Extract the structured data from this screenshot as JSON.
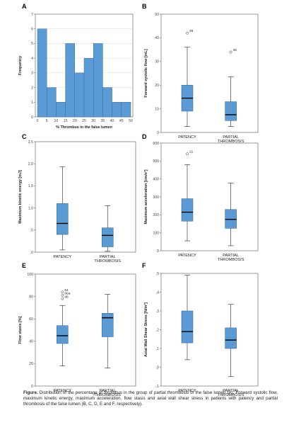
{
  "caption": {
    "lead": "Figure.",
    "text": " Distribution of the percentage of thrombus in the group of partial thrombosis of the false lumen (A). Forward systolic flow, maximum kinetic energy, maximum acceleration, flow stasis and axial wall shear stress in patients with patency and partial thrombosis of the false lumen (B, C, D, E and F, respectively)."
  },
  "colors": {
    "fill": "#5b9bd5",
    "stroke": "#2f5f8f",
    "panel_bg": "#ffffff",
    "grid": "#d9d9d9",
    "axis": "#555555"
  },
  "chart_data": [
    {
      "panel": "A",
      "type": "bar",
      "xlabel": "% Thrombus in the false lumen",
      "ylabel": "Frequency",
      "ylim": [
        0,
        7
      ],
      "yticks": [
        "0",
        "1",
        "2",
        "3",
        "4",
        "5",
        "6",
        "7"
      ],
      "xticks": [
        "0",
        "5",
        "10",
        "15",
        "20",
        "25",
        "30",
        "35",
        "40",
        "45",
        "50"
      ],
      "bin_edges": [
        0,
        5,
        10,
        15,
        20,
        25,
        30,
        35,
        40,
        45,
        50
      ],
      "values": [
        6,
        2,
        1,
        5,
        3,
        4,
        5,
        2,
        1,
        1
      ],
      "grid": true
    },
    {
      "panel": "B",
      "type": "box",
      "ylabel": "Forward systolic flow [mL]",
      "ylim": [
        0,
        50
      ],
      "yticks": [
        "0",
        "10",
        "20",
        "30",
        "40",
        "50"
      ],
      "categories": [
        "PATENCY",
        "PARTIAL\nTHROMBOSIS"
      ],
      "boxes": [
        {
          "min": 2.5,
          "q1": 9,
          "median": 14.5,
          "q3": 20,
          "max": 36,
          "outliers": [
            {
              "value": 42,
              "label": "29"
            }
          ]
        },
        {
          "min": 2.5,
          "q1": 5,
          "median": 7.5,
          "q3": 13,
          "max": 23.5,
          "outliers": [
            {
              "value": 34,
              "label": "46"
            }
          ]
        }
      ]
    },
    {
      "panel": "C",
      "type": "box",
      "ylabel": "Maximum kinetic energy [mJ]",
      "ylim": [
        0,
        2.5
      ],
      "yticks": [
        ",0",
        ",5",
        "1,0",
        "1,5",
        "2,0",
        "2,5"
      ],
      "categories": [
        "PATENCY",
        "PARTIAL\nTHROMBOSIS"
      ],
      "boxes": [
        {
          "min": 0.05,
          "q1": 0.4,
          "median": 0.65,
          "q3": 1.1,
          "max": 1.93,
          "outliers": []
        },
        {
          "min": 0.02,
          "q1": 0.12,
          "median": 0.38,
          "q3": 0.55,
          "max": 1.05,
          "outliers": []
        }
      ]
    },
    {
      "panel": "D",
      "type": "box",
      "ylabel": "Maximum acceleration [cm/s²]",
      "ylim": [
        0,
        600
      ],
      "yticks": [
        "0",
        "100",
        "200",
        "300",
        "400",
        "500",
        "600"
      ],
      "categories": [
        "PATENCY",
        "PARTIAL\nTHROMBOSIS"
      ],
      "boxes": [
        {
          "min": 55,
          "q1": 165,
          "median": 215,
          "q3": 290,
          "max": 480,
          "outliers": [
            {
              "value": 540,
              "label": "21"
            }
          ]
        },
        {
          "min": 28,
          "q1": 125,
          "median": 175,
          "q3": 230,
          "max": 378,
          "outliers": []
        }
      ]
    },
    {
      "panel": "E",
      "type": "box",
      "ylabel": "Flow stasis [%]",
      "ylim": [
        0,
        100
      ],
      "yticks": [
        "0",
        "20",
        "40",
        "60",
        "80",
        "100"
      ],
      "categories": [
        "PATENCY",
        "PARTIAL\nTHROMBOSIS"
      ],
      "boxes": [
        {
          "min": 18,
          "q1": 38,
          "median": 45,
          "q3": 54,
          "max": 72,
          "outliers": [
            {
              "value": 84,
              "label": "54"
            },
            {
              "value": 81,
              "label": "8ea"
            },
            {
              "value": 78,
              "label": "46"
            }
          ]
        },
        {
          "min": 16,
          "q1": 44,
          "median": 61,
          "q3": 65,
          "max": 82,
          "outliers": []
        }
      ]
    },
    {
      "panel": "F",
      "type": "box",
      "ylabel": "Axial Wall Shear Stress [N/m²]",
      "ylim": [
        -0.1,
        0.5
      ],
      "yticks": [
        "-,1",
        ",0",
        ",1",
        ",2",
        ",3",
        ",4",
        ",5"
      ],
      "categories": [
        "PATENCY",
        "PARTIAL\nTHROMBOSIS"
      ],
      "boxes": [
        {
          "min": 0.04,
          "q1": 0.13,
          "median": 0.19,
          "q3": 0.3,
          "max": 0.49,
          "outliers": []
        },
        {
          "min": -0.05,
          "q1": 0.1,
          "median": 0.145,
          "q3": 0.21,
          "max": 0.335,
          "outliers": []
        }
      ]
    }
  ]
}
